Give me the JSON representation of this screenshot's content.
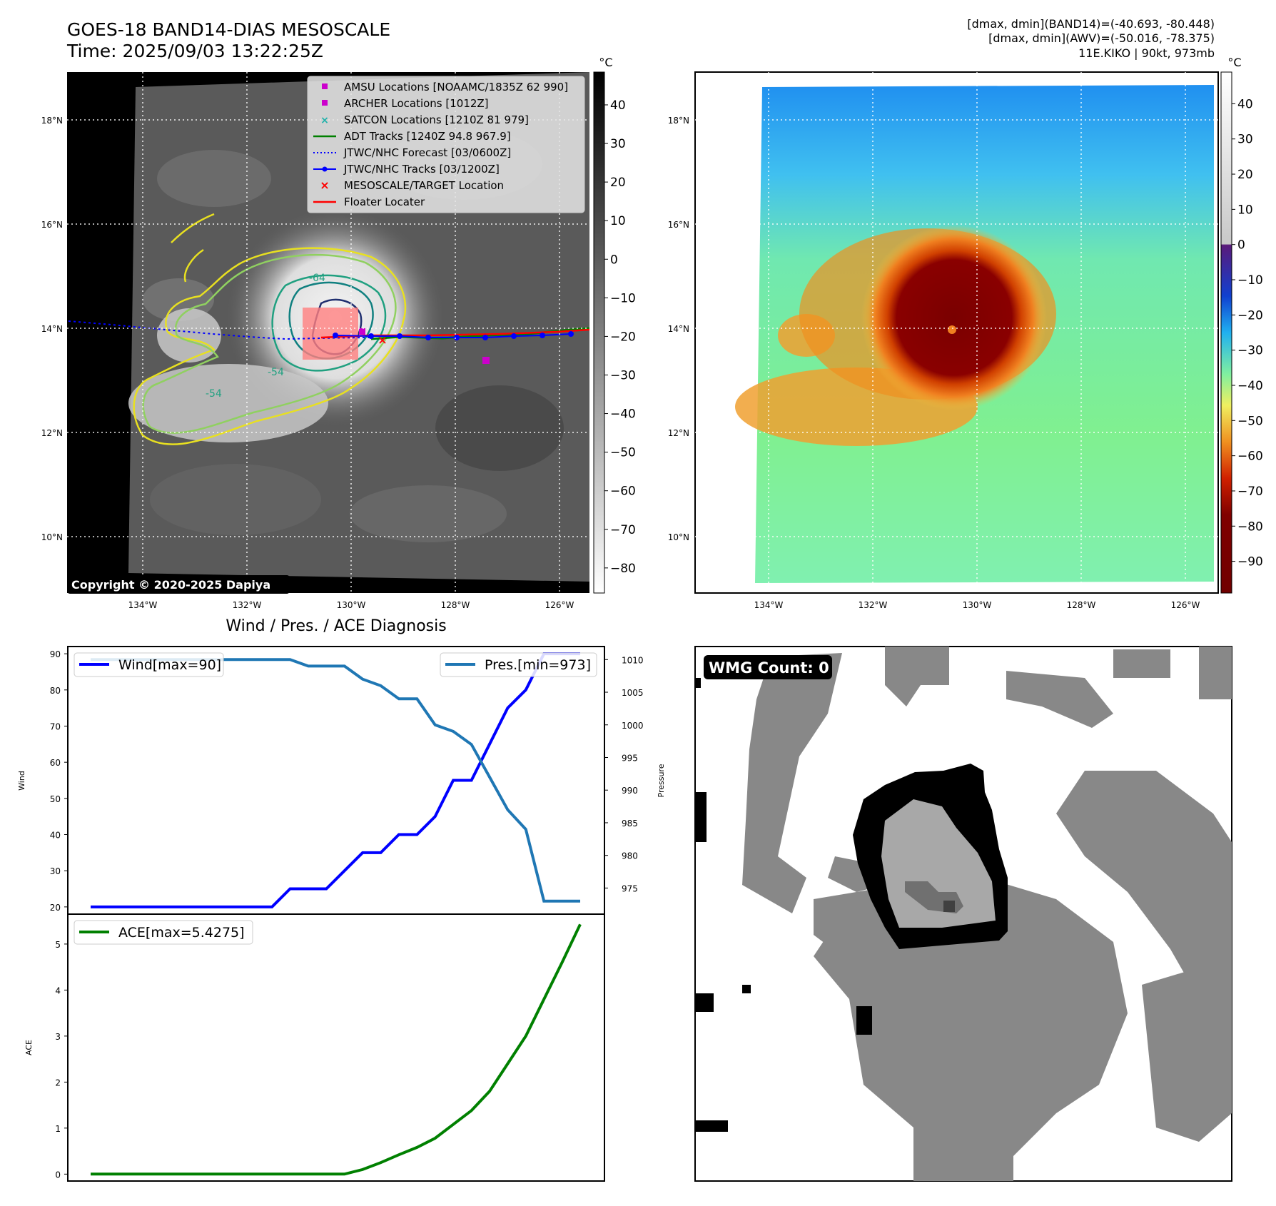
{
  "header": {
    "title_line1": "GOES-18 BAND14-DIAS MESOSCALE",
    "title_line2": "Time: 2025/09/03 13:22:25Z",
    "right_line1": "[dmax, dmin](BAND14)=(-40.693, -80.448)",
    "right_line2": "[dmax, dmin](AWV)=(-50.016, -78.375)",
    "right_line3": "11E.KIKO | 90kt, 973mb"
  },
  "map": {
    "lon_ticks": [
      "134°W",
      "132°W",
      "130°W",
      "128°W",
      "126°W"
    ],
    "lat_ticks": [
      "18°N",
      "16°N",
      "14°N",
      "12°N",
      "10°N"
    ],
    "copyright": "Copyright © 2020-2025 Dapiya",
    "contour_labels": [
      "-64",
      "-54",
      "-54"
    ]
  },
  "legend": {
    "items": [
      {
        "label": "AMSU Locations [NOAAMC/1835Z 62 990]",
        "color": "#cc00cc"
      },
      {
        "label": "ARCHER Locations [1012Z]",
        "color": "#cc00cc"
      },
      {
        "label": "SATCON Locations [1210Z 81 979]",
        "color": "#20b2aa"
      },
      {
        "label": "ADT Tracks [1240Z 94.8 967.9]",
        "color": "#008000"
      },
      {
        "label": "JTWC/NHC Forecast [03/0600Z]",
        "color": "#0000ff"
      },
      {
        "label": "JTWC/NHC Tracks [03/1200Z]",
        "color": "#0000ff"
      },
      {
        "label": "MESOSCALE/TARGET Location",
        "color": "#ff0000"
      },
      {
        "label": "Floater Locater",
        "color": "#ff0000"
      }
    ]
  },
  "colorbar_gray": {
    "unit": "°C",
    "ticks": [
      "40",
      "30",
      "20",
      "10",
      "0",
      "−10",
      "−20",
      "−30",
      "−40",
      "−50",
      "−60",
      "−70",
      "−80"
    ]
  },
  "colorbar_color": {
    "unit": "°C",
    "ticks": [
      "40",
      "30",
      "20",
      "10",
      "0",
      "−10",
      "−20",
      "−30",
      "−40",
      "−50",
      "−60",
      "−70",
      "−80",
      "−90"
    ]
  },
  "wmg": {
    "label": "WMG Count: 0"
  },
  "chart_data": [
    {
      "type": "line",
      "title": "Wind / Pres. / ACE Diagnosis",
      "ylabel": "Wind",
      "ylabel_right": "Pressure",
      "ylim": [
        18,
        92
      ],
      "ylim_right": [
        971,
        1012
      ],
      "y_ticks": [
        20,
        30,
        40,
        50,
        60,
        70,
        80,
        90
      ],
      "y_ticks_right": [
        975,
        980,
        985,
        990,
        995,
        1000,
        1005,
        1010
      ],
      "x": [
        0,
        1,
        2,
        3,
        4,
        5,
        6,
        7,
        8,
        9,
        10,
        11,
        12,
        13,
        14,
        15,
        16,
        17,
        18,
        19,
        20,
        21,
        22,
        23,
        24,
        25,
        26,
        27
      ],
      "series": [
        {
          "name": "Wind[max=90]",
          "color": "#0000ff",
          "values": [
            20,
            20,
            20,
            20,
            20,
            20,
            20,
            20,
            20,
            20,
            20,
            25,
            25,
            25,
            30,
            35,
            35,
            40,
            40,
            45,
            55,
            55,
            65,
            75,
            80,
            90,
            90,
            90
          ]
        },
        {
          "name": "Pres.[min=973]",
          "color": "#1f77b4",
          "axis": "right",
          "values": [
            1010,
            1010,
            1010,
            1010,
            1010,
            1010,
            1010,
            1010,
            1010,
            1010,
            1010,
            1010,
            1009,
            1009,
            1009,
            1007,
            1006,
            1004,
            1004,
            1000,
            999,
            997,
            992,
            987,
            984,
            973,
            973,
            973
          ]
        }
      ]
    },
    {
      "type": "line",
      "ylabel": "ACE",
      "ylim": [
        -0.15,
        5.65
      ],
      "y_ticks": [
        0,
        1,
        2,
        3,
        4,
        5
      ],
      "x": [
        0,
        1,
        2,
        3,
        4,
        5,
        6,
        7,
        8,
        9,
        10,
        11,
        12,
        13,
        14,
        15,
        16,
        17,
        18,
        19,
        20,
        21,
        22,
        23,
        24,
        25,
        26,
        27
      ],
      "series": [
        {
          "name": "ACE[max=5.4275]",
          "color": "#008000",
          "values": [
            0,
            0,
            0,
            0,
            0,
            0,
            0,
            0,
            0,
            0,
            0,
            0,
            0,
            0,
            0,
            0.1,
            0.25,
            0.42,
            0.58,
            0.78,
            1.08,
            1.38,
            1.8,
            2.4,
            3.0,
            3.8,
            4.6,
            5.4275
          ]
        }
      ]
    }
  ]
}
